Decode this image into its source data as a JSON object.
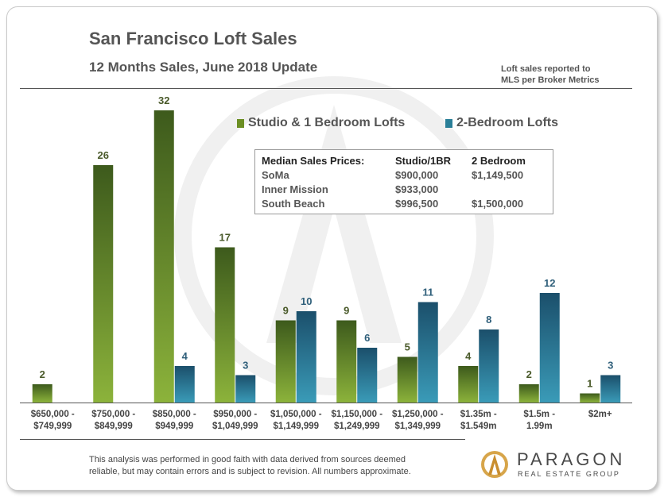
{
  "header": {
    "title": "San Francisco Loft Sales",
    "subtitle": "12 Months Sales, June 2018 Update",
    "note_lines": [
      "Loft sales reported to",
      "MLS per Broker Metrics"
    ]
  },
  "legend": {
    "series1": "Studio & 1 Bedroom Lofts",
    "series2": "2-Bedroom Lofts"
  },
  "median_table": {
    "headers": [
      "Median Sales Prices:",
      "Studio/1BR",
      "2 Bedroom"
    ],
    "rows": [
      [
        "SoMa",
        "$900,000",
        "$1,149,500"
      ],
      [
        "Inner Mission",
        "$933,000",
        ""
      ],
      [
        "South Beach",
        "$996,500",
        "$1,500,000"
      ]
    ]
  },
  "chart_data": {
    "type": "bar",
    "title": "San Francisco Loft Sales",
    "categories": [
      [
        "$650,000 -",
        "$749,999"
      ],
      [
        "$750,000 -",
        "$849,999"
      ],
      [
        "$850,000 -",
        "$949,999"
      ],
      [
        "$950,000 -",
        "$1,049,999"
      ],
      [
        "$1,050,000 -",
        "$1,149,999"
      ],
      [
        "$1,150,000 -",
        "$1,249,999"
      ],
      [
        "$1,250,000 -",
        "$1,349,999"
      ],
      [
        "$1.35m -",
        "$1.549m"
      ],
      [
        "$1.5m -",
        "1.99m"
      ],
      [
        "$2m+",
        ""
      ]
    ],
    "series": [
      {
        "name": "Studio & 1 Bedroom Lofts",
        "color": "#6b8e23",
        "values": [
          2,
          26,
          32,
          17,
          9,
          9,
          5,
          4,
          2,
          1
        ]
      },
      {
        "name": "2-Bedroom Lofts",
        "color": "#2a7f98",
        "values": [
          null,
          null,
          4,
          3,
          10,
          6,
          11,
          8,
          12,
          3
        ]
      }
    ],
    "ylim": [
      0,
      32
    ],
    "grid": false,
    "legend_position": "top-right",
    "label_colors": {
      "series1": "#4a5a2a",
      "series2": "#2f5f7a"
    }
  },
  "footer": {
    "disclaimer_lines": [
      "This analysis was performed in good faith with data derived from sources deemed",
      "reliable, but may contain errors and is subject to revision.  All numbers approximate."
    ],
    "brand": "PARAGON",
    "brand_tagline": "REAL ESTATE GROUP"
  }
}
